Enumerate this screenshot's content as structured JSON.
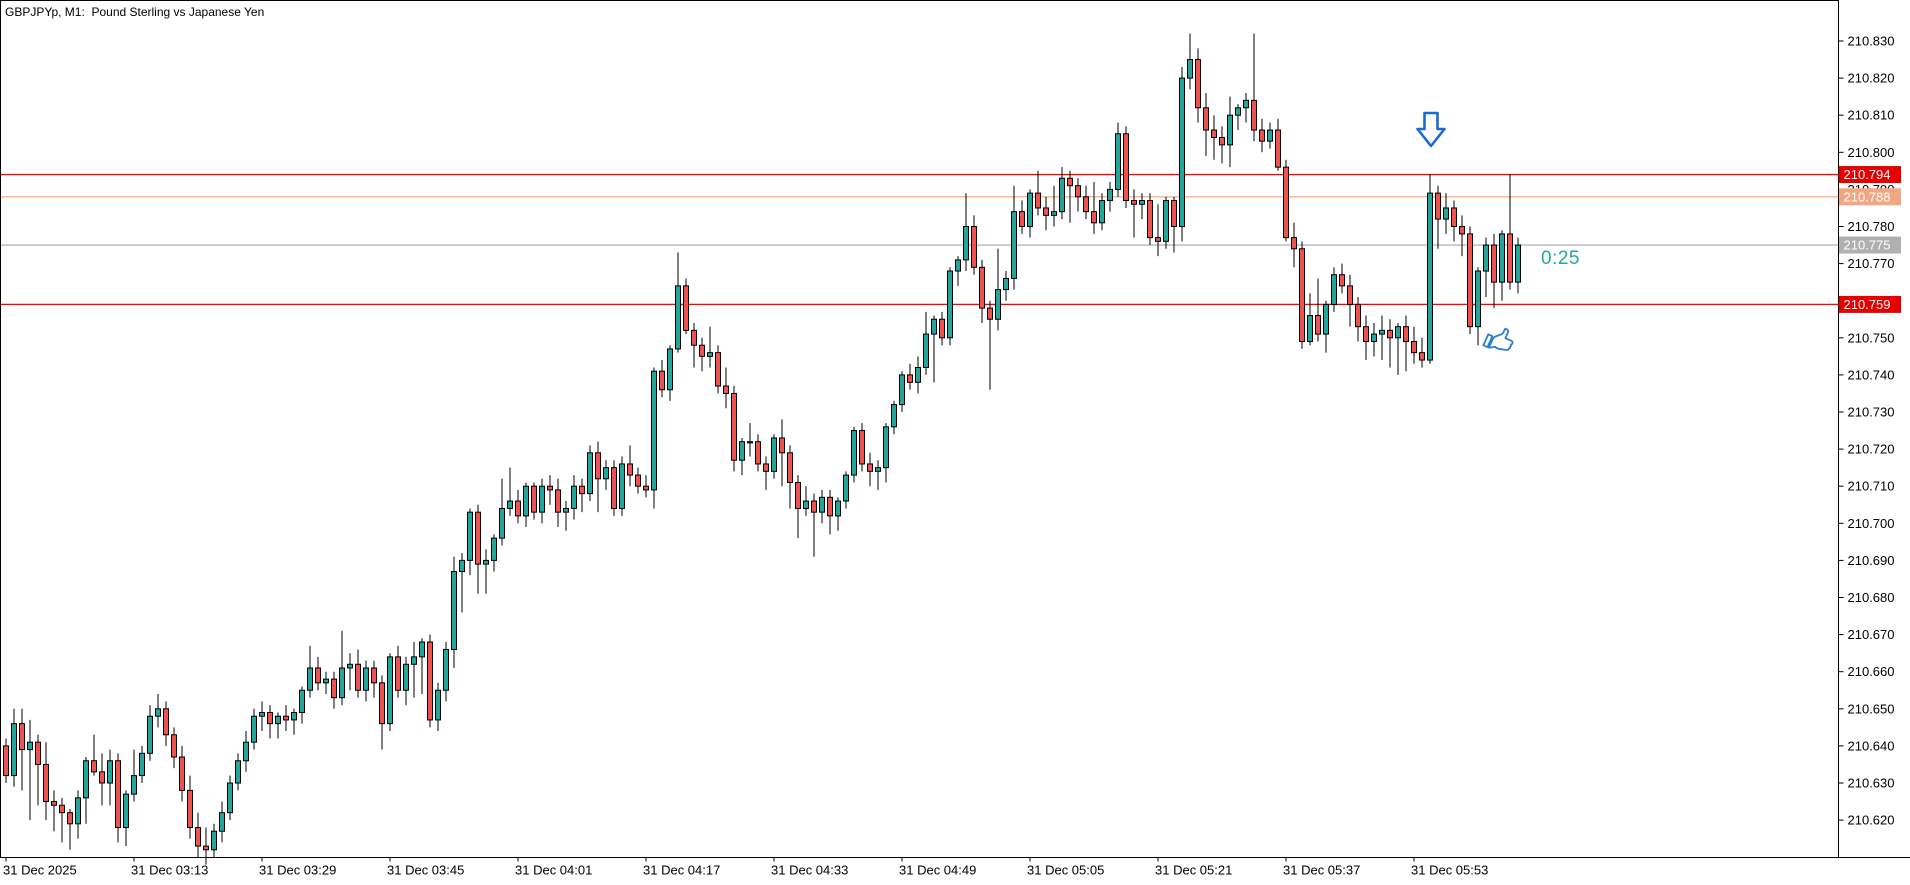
{
  "window": {
    "title": "GBPJPYp, M1:  Pound Sterling vs Japanese Yen"
  },
  "timer": {
    "text": "0:25",
    "color": "#26a69a"
  },
  "annotations": {
    "direction_arrow": {
      "type": "down-arrow",
      "color": "#1a6ad4"
    },
    "thumbs_up": {
      "type": "thumbs-up",
      "color": "#2f7fd0"
    }
  },
  "chart_data": {
    "type": "candlestick",
    "symbol": "GBPJPYp",
    "period": "M1",
    "title": "GBPJPYp, M1:  Pound Sterling vs Japanese Yen",
    "up_color": "#26a69a",
    "down_color": "#ef5350",
    "wick_color": "#000000",
    "background": "#ffffff",
    "y_axis": {
      "min": 210.62,
      "max": 210.83,
      "tick_step": 0.01,
      "labels": [
        "210.830",
        "210.820",
        "210.810",
        "210.800",
        "210.790",
        "210.780",
        "210.770",
        "210.760",
        "210.750",
        "210.740",
        "210.730",
        "210.720",
        "210.710",
        "210.700",
        "210.690",
        "210.680",
        "210.670",
        "210.660",
        "210.650",
        "210.640",
        "210.630",
        "210.620"
      ]
    },
    "x_axis": {
      "tick_interval_candles": 16,
      "labels": [
        "31 Dec 2025",
        "31 Dec 03:13",
        "31 Dec 03:29",
        "31 Dec 03:45",
        "31 Dec 04:01",
        "31 Dec 04:17",
        "31 Dec 04:33",
        "31 Dec 04:49",
        "31 Dec 05:05",
        "31 Dec 05:21",
        "31 Dec 05:37",
        "31 Dec 05:53"
      ]
    },
    "price_lines": [
      {
        "price": 210.794,
        "label": "210.794",
        "line_color": "#f00707",
        "badge_color": "#e60000",
        "text_color": "#ffffff",
        "role": "resistance-level"
      },
      {
        "price": 210.788,
        "label": "210.788",
        "line_color": "#ffb088",
        "badge_color": "#f2a784",
        "text_color": "#ffffff",
        "role": "minor-level"
      },
      {
        "price": 210.775,
        "label": "210.775",
        "line_color": "#b8b8b8",
        "badge_color": "#b0b0b0",
        "text_color": "#ffffff",
        "role": "current-price-line"
      },
      {
        "price": 210.759,
        "label": "210.759",
        "line_color": "#f00707",
        "badge_color": "#e60000",
        "text_color": "#ffffff",
        "role": "support-level"
      }
    ],
    "current_price": "210.775",
    "candles": [
      [
        210.64,
        210.642,
        210.63,
        210.632
      ],
      [
        210.632,
        210.65,
        210.629,
        210.646
      ],
      [
        210.646,
        210.65,
        210.628,
        210.639
      ],
      [
        210.639,
        210.647,
        210.62,
        210.641
      ],
      [
        210.641,
        210.643,
        210.624,
        210.635
      ],
      [
        210.635,
        210.641,
        210.62,
        210.625
      ],
      [
        210.625,
        210.628,
        210.617,
        210.624
      ],
      [
        210.624,
        210.626,
        210.614,
        210.622
      ],
      [
        210.622,
        210.623,
        210.612,
        210.619
      ],
      [
        210.619,
        210.628,
        210.615,
        210.626
      ],
      [
        210.626,
        210.637,
        210.619,
        210.636
      ],
      [
        210.636,
        210.643,
        210.632,
        210.633
      ],
      [
        210.633,
        210.638,
        210.624,
        210.63
      ],
      [
        210.63,
        210.639,
        210.624,
        210.636
      ],
      [
        210.636,
        210.638,
        210.614,
        210.618
      ],
      [
        210.618,
        210.628,
        210.613,
        210.627
      ],
      [
        210.627,
        210.639,
        210.625,
        210.632
      ],
      [
        210.632,
        210.64,
        210.63,
        210.638
      ],
      [
        210.638,
        210.651,
        210.636,
        210.648
      ],
      [
        210.648,
        210.654,
        210.645,
        210.65
      ],
      [
        210.65,
        210.652,
        210.64,
        210.643
      ],
      [
        210.643,
        210.645,
        210.634,
        210.637
      ],
      [
        210.637,
        210.64,
        210.625,
        210.628
      ],
      [
        210.628,
        210.632,
        210.615,
        210.618
      ],
      [
        210.618,
        210.622,
        210.61,
        210.613
      ],
      [
        210.613,
        210.618,
        210.608,
        210.612
      ],
      [
        210.612,
        210.619,
        210.61,
        210.617
      ],
      [
        210.617,
        210.625,
        210.614,
        210.622
      ],
      [
        210.622,
        210.632,
        210.62,
        210.63
      ],
      [
        210.63,
        210.638,
        210.628,
        210.636
      ],
      [
        210.636,
        210.644,
        210.633,
        210.641
      ],
      [
        210.641,
        210.65,
        210.639,
        210.648
      ],
      [
        210.648,
        210.652,
        210.644,
        210.649
      ],
      [
        210.649,
        210.651,
        210.642,
        210.646
      ],
      [
        210.646,
        210.649,
        210.642,
        210.648
      ],
      [
        210.648,
        210.651,
        210.644,
        210.647
      ],
      [
        210.647,
        210.65,
        210.643,
        210.649
      ],
      [
        210.649,
        210.656,
        210.646,
        210.655
      ],
      [
        210.655,
        210.667,
        210.653,
        210.661
      ],
      [
        210.661,
        210.664,
        210.655,
        210.657
      ],
      [
        210.657,
        210.66,
        210.654,
        210.658
      ],
      [
        210.658,
        210.66,
        210.65,
        210.653
      ],
      [
        210.653,
        210.671,
        210.651,
        210.661
      ],
      [
        210.661,
        210.665,
        210.655,
        210.662
      ],
      [
        210.662,
        210.666,
        210.653,
        210.655
      ],
      [
        210.655,
        210.663,
        210.652,
        210.661
      ],
      [
        210.661,
        210.663,
        210.653,
        210.657
      ],
      [
        210.657,
        210.659,
        210.639,
        210.646
      ],
      [
        210.646,
        210.665,
        210.644,
        210.664
      ],
      [
        210.664,
        210.667,
        210.653,
        210.655
      ],
      [
        210.655,
        210.664,
        210.651,
        210.662
      ],
      [
        210.662,
        210.668,
        210.653,
        210.664
      ],
      [
        210.664,
        210.669,
        210.654,
        210.668
      ],
      [
        210.668,
        210.67,
        210.645,
        210.647
      ],
      [
        210.647,
        210.657,
        210.644,
        210.655
      ],
      [
        210.655,
        210.668,
        210.652,
        210.666
      ],
      [
        210.666,
        210.691,
        210.661,
        210.687
      ],
      [
        210.687,
        210.692,
        210.676,
        210.69
      ],
      [
        210.69,
        210.704,
        210.686,
        210.703
      ],
      [
        210.703,
        210.705,
        210.681,
        210.689
      ],
      [
        210.689,
        210.693,
        210.681,
        210.69
      ],
      [
        210.69,
        210.697,
        210.687,
        210.696
      ],
      [
        210.696,
        210.712,
        210.694,
        210.704
      ],
      [
        210.704,
        210.715,
        210.702,
        210.706
      ],
      [
        210.706,
        210.709,
        210.7,
        210.702
      ],
      [
        210.702,
        210.711,
        210.699,
        210.71
      ],
      [
        210.71,
        210.711,
        210.701,
        210.703
      ],
      [
        210.703,
        210.712,
        210.7,
        210.71
      ],
      [
        210.71,
        210.713,
        210.705,
        210.709
      ],
      [
        210.709,
        210.712,
        210.699,
        210.703
      ],
      [
        210.703,
        210.706,
        210.698,
        210.704
      ],
      [
        210.704,
        210.713,
        210.701,
        210.71
      ],
      [
        210.71,
        210.712,
        210.703,
        210.708
      ],
      [
        210.708,
        210.721,
        210.706,
        210.719
      ],
      [
        210.719,
        210.722,
        210.703,
        210.712
      ],
      [
        210.712,
        210.717,
        210.709,
        210.715
      ],
      [
        210.715,
        210.717,
        210.702,
        210.704
      ],
      [
        210.704,
        210.718,
        210.702,
        210.716
      ],
      [
        210.716,
        210.721,
        210.71,
        210.713
      ],
      [
        210.713,
        210.715,
        210.708,
        210.71
      ],
      [
        210.71,
        210.713,
        210.707,
        210.709
      ],
      [
        210.709,
        210.742,
        210.704,
        210.741
      ],
      [
        210.741,
        210.744,
        210.734,
        210.736
      ],
      [
        210.736,
        210.748,
        210.733,
        210.747
      ],
      [
        210.747,
        210.773,
        210.746,
        210.764
      ],
      [
        210.764,
        210.766,
        210.751,
        210.752
      ],
      [
        210.752,
        210.754,
        210.742,
        210.748
      ],
      [
        210.748,
        210.75,
        210.741,
        210.745
      ],
      [
        210.745,
        210.753,
        210.742,
        210.746
      ],
      [
        210.746,
        210.748,
        210.735,
        210.737
      ],
      [
        210.737,
        210.742,
        210.731,
        210.735
      ],
      [
        210.735,
        210.737,
        210.714,
        210.717
      ],
      [
        210.717,
        210.723,
        210.713,
        210.722
      ],
      [
        210.722,
        210.727,
        210.718,
        210.722
      ],
      [
        210.722,
        210.724,
        210.714,
        210.716
      ],
      [
        210.716,
        210.718,
        210.709,
        210.714
      ],
      [
        210.714,
        210.724,
        210.712,
        210.723
      ],
      [
        210.723,
        210.728,
        210.71,
        210.719
      ],
      [
        210.719,
        210.721,
        210.704,
        210.711
      ],
      [
        210.711,
        210.713,
        210.696,
        210.704
      ],
      [
        210.704,
        210.71,
        210.702,
        210.706
      ],
      [
        210.706,
        210.708,
        210.691,
        210.703
      ],
      [
        210.703,
        210.709,
        210.7,
        210.707
      ],
      [
        210.707,
        210.709,
        210.697,
        210.702
      ],
      [
        210.702,
        210.707,
        210.698,
        210.706
      ],
      [
        210.706,
        210.714,
        210.704,
        210.713
      ],
      [
        210.713,
        210.726,
        210.711,
        210.725
      ],
      [
        210.725,
        210.727,
        210.714,
        210.716
      ],
      [
        210.716,
        210.719,
        210.71,
        210.714
      ],
      [
        210.714,
        210.717,
        210.709,
        210.715
      ],
      [
        210.715,
        210.727,
        210.711,
        210.726
      ],
      [
        210.726,
        210.733,
        210.724,
        210.732
      ],
      [
        210.732,
        210.741,
        210.73,
        210.74
      ],
      [
        210.74,
        210.743,
        210.736,
        210.738
      ],
      [
        210.738,
        210.745,
        210.735,
        210.742
      ],
      [
        210.742,
        210.757,
        210.74,
        210.751
      ],
      [
        210.751,
        210.756,
        210.738,
        210.755
      ],
      [
        210.755,
        210.757,
        210.748,
        210.75
      ],
      [
        210.75,
        210.769,
        210.748,
        210.768
      ],
      [
        210.768,
        210.772,
        210.764,
        210.771
      ],
      [
        210.771,
        210.789,
        210.768,
        210.78
      ],
      [
        210.78,
        210.783,
        210.767,
        210.769
      ],
      [
        210.769,
        210.771,
        210.754,
        210.758
      ],
      [
        210.758,
        210.76,
        210.736,
        210.755
      ],
      [
        210.755,
        210.774,
        210.752,
        210.763
      ],
      [
        210.763,
        210.768,
        210.76,
        210.766
      ],
      [
        210.766,
        210.791,
        210.763,
        210.784
      ],
      [
        210.784,
        210.787,
        210.778,
        210.78
      ],
      [
        210.78,
        210.79,
        210.777,
        210.789
      ],
      [
        210.789,
        210.795,
        210.783,
        210.785
      ],
      [
        210.785,
        210.788,
        210.779,
        210.783
      ],
      [
        210.783,
        210.791,
        210.78,
        210.784
      ],
      [
        210.784,
        210.796,
        210.782,
        210.793
      ],
      [
        210.793,
        210.795,
        210.781,
        210.791
      ],
      [
        210.791,
        210.793,
        210.784,
        210.788
      ],
      [
        210.788,
        210.791,
        210.782,
        210.784
      ],
      [
        210.784,
        210.792,
        210.778,
        210.781
      ],
      [
        210.781,
        210.789,
        210.779,
        210.787
      ],
      [
        210.787,
        210.792,
        210.784,
        210.79
      ],
      [
        210.79,
        210.808,
        210.788,
        210.805
      ],
      [
        210.805,
        210.807,
        210.785,
        210.787
      ],
      [
        210.787,
        210.79,
        210.777,
        210.786
      ],
      [
        210.786,
        210.789,
        210.782,
        210.787
      ],
      [
        210.787,
        210.789,
        210.775,
        210.777
      ],
      [
        210.777,
        210.786,
        210.772,
        210.776
      ],
      [
        210.776,
        210.788,
        210.774,
        210.787
      ],
      [
        210.787,
        210.788,
        210.773,
        210.78
      ],
      [
        210.78,
        210.823,
        210.776,
        210.82
      ],
      [
        210.82,
        210.832,
        210.817,
        210.825
      ],
      [
        210.825,
        210.828,
        210.808,
        210.812
      ],
      [
        210.812,
        210.816,
        210.799,
        210.806
      ],
      [
        210.806,
        210.81,
        210.798,
        210.804
      ],
      [
        210.804,
        210.807,
        210.797,
        210.802
      ],
      [
        210.802,
        210.815,
        210.796,
        210.81
      ],
      [
        210.81,
        210.813,
        210.806,
        210.812
      ],
      [
        210.812,
        210.816,
        210.808,
        210.814
      ],
      [
        210.814,
        210.832,
        210.803,
        210.806
      ],
      [
        210.806,
        210.809,
        210.8,
        210.803
      ],
      [
        210.803,
        210.808,
        210.801,
        210.806
      ],
      [
        210.806,
        210.809,
        210.795,
        210.796
      ],
      [
        210.796,
        210.798,
        210.776,
        210.777
      ],
      [
        210.777,
        210.781,
        210.769,
        210.774
      ],
      [
        210.774,
        210.776,
        210.747,
        210.749
      ],
      [
        210.749,
        210.762,
        210.748,
        210.756
      ],
      [
        210.756,
        210.766,
        210.749,
        210.751
      ],
      [
        210.751,
        210.76,
        210.746,
        210.759
      ],
      [
        210.759,
        210.769,
        210.757,
        210.767
      ],
      [
        210.767,
        210.77,
        210.762,
        210.764
      ],
      [
        210.764,
        210.767,
        210.753,
        210.759
      ],
      [
        210.759,
        210.761,
        210.749,
        210.753
      ],
      [
        210.753,
        210.756,
        210.744,
        210.749
      ],
      [
        210.749,
        210.754,
        210.745,
        210.751
      ],
      [
        210.751,
        210.756,
        210.744,
        210.752
      ],
      [
        210.752,
        210.755,
        210.742,
        210.75
      ],
      [
        210.75,
        210.754,
        210.74,
        210.753
      ],
      [
        210.753,
        210.756,
        210.741,
        210.749
      ],
      [
        210.749,
        210.753,
        210.743,
        210.746
      ],
      [
        210.746,
        210.75,
        210.742,
        210.744
      ],
      [
        210.744,
        210.794,
        210.743,
        210.789
      ],
      [
        210.789,
        210.791,
        210.774,
        210.782
      ],
      [
        210.782,
        210.789,
        210.778,
        210.785
      ],
      [
        210.785,
        210.787,
        210.776,
        210.78
      ],
      [
        210.78,
        210.783,
        210.772,
        210.778
      ],
      [
        210.778,
        210.78,
        210.751,
        210.753
      ],
      [
        210.753,
        210.769,
        210.748,
        210.768
      ],
      [
        210.768,
        210.777,
        210.761,
        210.775
      ],
      [
        210.775,
        210.778,
        210.758,
        210.765
      ],
      [
        210.765,
        210.779,
        210.76,
        210.778
      ],
      [
        210.778,
        210.794,
        210.763,
        210.765
      ],
      [
        210.765,
        210.777,
        210.762,
        210.775
      ]
    ]
  }
}
